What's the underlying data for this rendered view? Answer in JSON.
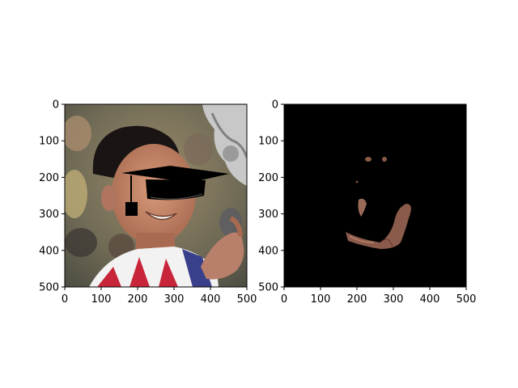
{
  "figure": {
    "panels": [
      "left-photo-with-cap",
      "right-masked-face"
    ]
  },
  "chart_data": [
    {
      "type": "image",
      "xlim": [
        0,
        500
      ],
      "ylim": [
        500,
        0
      ],
      "x_ticks": [
        "0",
        "100",
        "200",
        "300",
        "400",
        "500"
      ],
      "y_ticks": [
        "0",
        "100",
        "200",
        "300",
        "400",
        "500"
      ],
      "content": "photo of a smiling boy with a graduation cap overlay covering the eyes, a trophy at top-right"
    },
    {
      "type": "image",
      "xlim": [
        0,
        500
      ],
      "ylim": [
        500,
        0
      ],
      "x_ticks": [
        "0",
        "100",
        "200",
        "300",
        "400",
        "500"
      ],
      "y_ticks": [
        "0",
        "100",
        "200",
        "300",
        "400",
        "500"
      ],
      "content": "black background with only skin-colored regions of the face and hand visible"
    }
  ],
  "colors": {
    "background_dark": "#000000",
    "skin": "#8a5a4a",
    "cap": "#000000",
    "shirt_red": "#c8253a",
    "shirt_blue": "#3a3f8c"
  }
}
